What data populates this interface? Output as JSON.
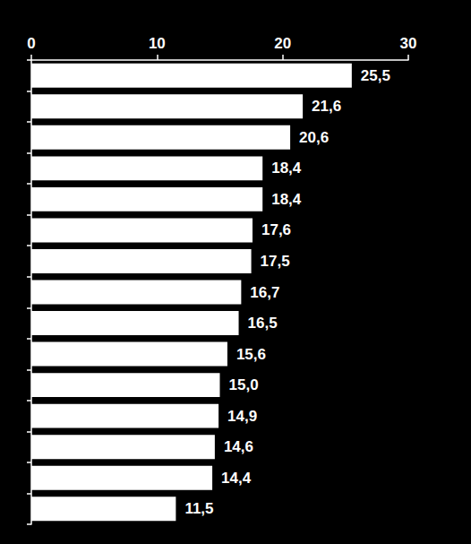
{
  "chart_data": {
    "type": "bar",
    "orientation": "horizontal",
    "categories": [
      null,
      null,
      null,
      null,
      null,
      null,
      null,
      null,
      null,
      null,
      null,
      null,
      null,
      null,
      null
    ],
    "values": [
      25.5,
      21.6,
      20.6,
      18.4,
      18.4,
      17.6,
      17.5,
      16.7,
      16.5,
      15.6,
      15.0,
      14.9,
      14.6,
      14.4,
      11.5
    ],
    "value_labels": [
      "25,5",
      "21,6",
      "20,6",
      "18,4",
      "18,4",
      "17,6",
      "17,5",
      "16,7",
      "16,5",
      "15,6",
      "15,0",
      "14,9",
      "14,6",
      "14,4",
      "11,5"
    ],
    "color": "#ffffff",
    "xlim": [
      0,
      30
    ],
    "xticks": [
      0,
      10,
      20,
      30
    ],
    "grid": false,
    "data_labels": true,
    "tick_labels": "x"
  }
}
